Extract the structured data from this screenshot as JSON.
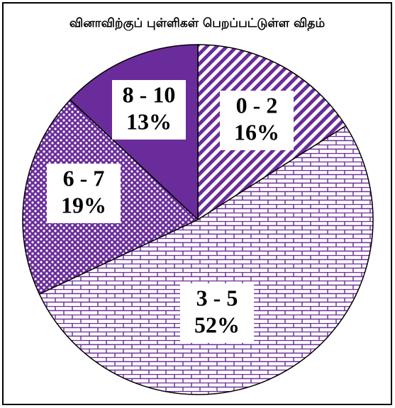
{
  "chart_data": {
    "type": "pie",
    "title": "வினாவிற்குப் புள்ளிகள் பெறப்பட்டுள்ள விதம்",
    "categories": [
      "0 - 2",
      "3 - 5",
      "6 - 7",
      "8 - 10"
    ],
    "values": [
      16,
      52,
      19,
      13
    ],
    "value_labels": [
      "16%",
      "52%",
      "19%",
      "13%"
    ],
    "color": "#6a2c9b"
  }
}
